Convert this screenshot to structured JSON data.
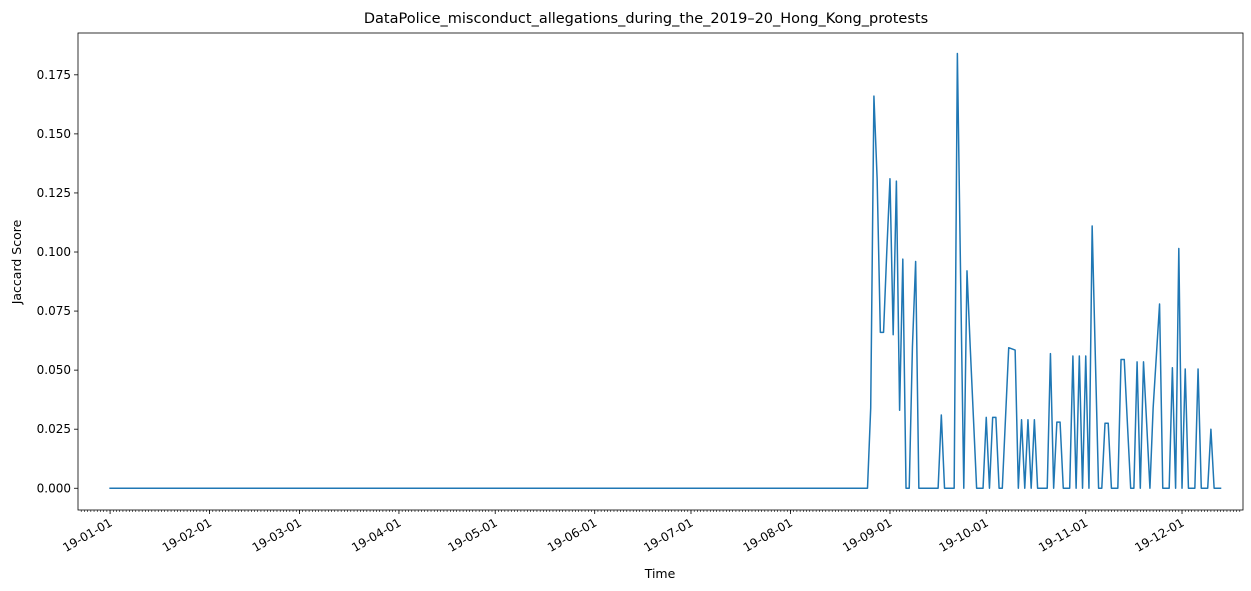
{
  "chart_data": {
    "type": "line",
    "title": "DataPolice_misconduct_allegations_during_the_2019–20_Hong_Kong_protests",
    "xlabel": "Time",
    "ylabel": "Jaccard Score",
    "x_range": [
      "2018-12-22",
      "2019-12-20"
    ],
    "ylim": [
      -0.0092,
      0.1927
    ],
    "y_ticks": [
      {
        "value": 0.0,
        "label": "0.000"
      },
      {
        "value": 0.025,
        "label": "0.025"
      },
      {
        "value": 0.05,
        "label": "0.050"
      },
      {
        "value": 0.075,
        "label": "0.075"
      },
      {
        "value": 0.1,
        "label": "0.100"
      },
      {
        "value": 0.125,
        "label": "0.125"
      },
      {
        "value": 0.15,
        "label": "0.150"
      },
      {
        "value": 0.175,
        "label": "0.175"
      }
    ],
    "x_ticks": [
      {
        "date": "2019-01-01",
        "label": "19-01-01"
      },
      {
        "date": "2019-02-01",
        "label": "19-02-01"
      },
      {
        "date": "2019-03-01",
        "label": "19-03-01"
      },
      {
        "date": "2019-04-01",
        "label": "19-04-01"
      },
      {
        "date": "2019-05-01",
        "label": "19-05-01"
      },
      {
        "date": "2019-06-01",
        "label": "19-06-01"
      },
      {
        "date": "2019-07-01",
        "label": "19-07-01"
      },
      {
        "date": "2019-08-01",
        "label": "19-08-01"
      },
      {
        "date": "2019-09-01",
        "label": "19-09-01"
      },
      {
        "date": "2019-10-01",
        "label": "19-10-01"
      },
      {
        "date": "2019-11-01",
        "label": "19-11-01"
      },
      {
        "date": "2019-12-01",
        "label": "19-12-01"
      }
    ],
    "grid": false,
    "legend": "none",
    "series": [
      {
        "color": "#1f77b4",
        "points": [
          [
            "2019-01-01",
            0.0
          ],
          [
            "2019-08-25",
            0.0
          ],
          [
            "2019-08-26",
            0.034
          ],
          [
            "2019-08-27",
            0.166
          ],
          [
            "2019-08-28",
            0.131
          ],
          [
            "2019-08-29",
            0.066
          ],
          [
            "2019-08-30",
            0.066
          ],
          [
            "2019-08-31",
            0.1
          ],
          [
            "2019-09-01",
            0.131
          ],
          [
            "2019-09-02",
            0.065
          ],
          [
            "2019-09-03",
            0.13
          ],
          [
            "2019-09-04",
            0.033
          ],
          [
            "2019-09-05",
            0.097
          ],
          [
            "2019-09-06",
            0.0
          ],
          [
            "2019-09-07",
            0.0
          ],
          [
            "2019-09-08",
            0.06
          ],
          [
            "2019-09-09",
            0.096
          ],
          [
            "2019-09-10",
            0.0
          ],
          [
            "2019-09-16",
            0.0
          ],
          [
            "2019-09-17",
            0.031
          ],
          [
            "2019-09-18",
            0.0
          ],
          [
            "2019-09-21",
            0.0
          ],
          [
            "2019-09-22",
            0.184
          ],
          [
            "2019-09-23",
            0.09
          ],
          [
            "2019-09-24",
            0.0
          ],
          [
            "2019-09-25",
            0.092
          ],
          [
            "2019-09-26",
            0.06
          ],
          [
            "2019-09-27",
            0.03
          ],
          [
            "2019-09-28",
            0.0
          ],
          [
            "2019-09-30",
            0.0
          ],
          [
            "2019-10-01",
            0.03
          ],
          [
            "2019-10-02",
            0.0
          ],
          [
            "2019-10-03",
            0.03
          ],
          [
            "2019-10-04",
            0.03
          ],
          [
            "2019-10-05",
            0.0
          ],
          [
            "2019-10-06",
            0.0
          ],
          [
            "2019-10-08",
            0.0595
          ],
          [
            "2019-10-10",
            0.0585
          ],
          [
            "2019-10-11",
            0.0
          ],
          [
            "2019-10-12",
            0.029
          ],
          [
            "2019-10-13",
            0.0
          ],
          [
            "2019-10-14",
            0.029
          ],
          [
            "2019-10-15",
            0.0
          ],
          [
            "2019-10-16",
            0.029
          ],
          [
            "2019-10-17",
            0.0
          ],
          [
            "2019-10-20",
            0.0
          ],
          [
            "2019-10-21",
            0.057
          ],
          [
            "2019-10-22",
            0.0
          ],
          [
            "2019-10-23",
            0.028
          ],
          [
            "2019-10-24",
            0.028
          ],
          [
            "2019-10-25",
            0.0
          ],
          [
            "2019-10-27",
            0.0
          ],
          [
            "2019-10-28",
            0.056
          ],
          [
            "2019-10-29",
            0.0
          ],
          [
            "2019-10-30",
            0.056
          ],
          [
            "2019-10-31",
            0.0
          ],
          [
            "2019-11-01",
            0.056
          ],
          [
            "2019-11-02",
            0.0
          ],
          [
            "2019-11-03",
            0.111
          ],
          [
            "2019-11-04",
            0.055
          ],
          [
            "2019-11-05",
            0.0
          ],
          [
            "2019-11-06",
            0.0
          ],
          [
            "2019-11-07",
            0.0275
          ],
          [
            "2019-11-08",
            0.0275
          ],
          [
            "2019-11-09",
            0.0
          ],
          [
            "2019-11-11",
            0.0
          ],
          [
            "2019-11-12",
            0.0545
          ],
          [
            "2019-11-13",
            0.0545
          ],
          [
            "2019-11-14",
            0.027
          ],
          [
            "2019-11-15",
            0.0
          ],
          [
            "2019-11-16",
            0.0
          ],
          [
            "2019-11-17",
            0.0535
          ],
          [
            "2019-11-18",
            0.0
          ],
          [
            "2019-11-19",
            0.0535
          ],
          [
            "2019-11-20",
            0.027
          ],
          [
            "2019-11-21",
            0.0
          ],
          [
            "2019-11-22",
            0.034
          ],
          [
            "2019-11-24",
            0.078
          ],
          [
            "2019-11-25",
            0.0
          ],
          [
            "2019-11-27",
            0.0
          ],
          [
            "2019-11-28",
            0.051
          ],
          [
            "2019-11-29",
            0.0
          ],
          [
            "2019-11-30",
            0.1015
          ],
          [
            "2019-12-01",
            0.0
          ],
          [
            "2019-12-02",
            0.0505
          ],
          [
            "2019-12-03",
            0.0
          ],
          [
            "2019-12-04",
            0.0
          ],
          [
            "2019-12-05",
            0.0
          ],
          [
            "2019-12-06",
            0.0505
          ],
          [
            "2019-12-07",
            0.0
          ],
          [
            "2019-12-08",
            0.0
          ],
          [
            "2019-12-09",
            0.0
          ],
          [
            "2019-12-10",
            0.025
          ],
          [
            "2019-12-11",
            0.0
          ],
          [
            "2019-12-12",
            0.0
          ],
          [
            "2019-12-13",
            0.0
          ]
        ]
      }
    ]
  }
}
